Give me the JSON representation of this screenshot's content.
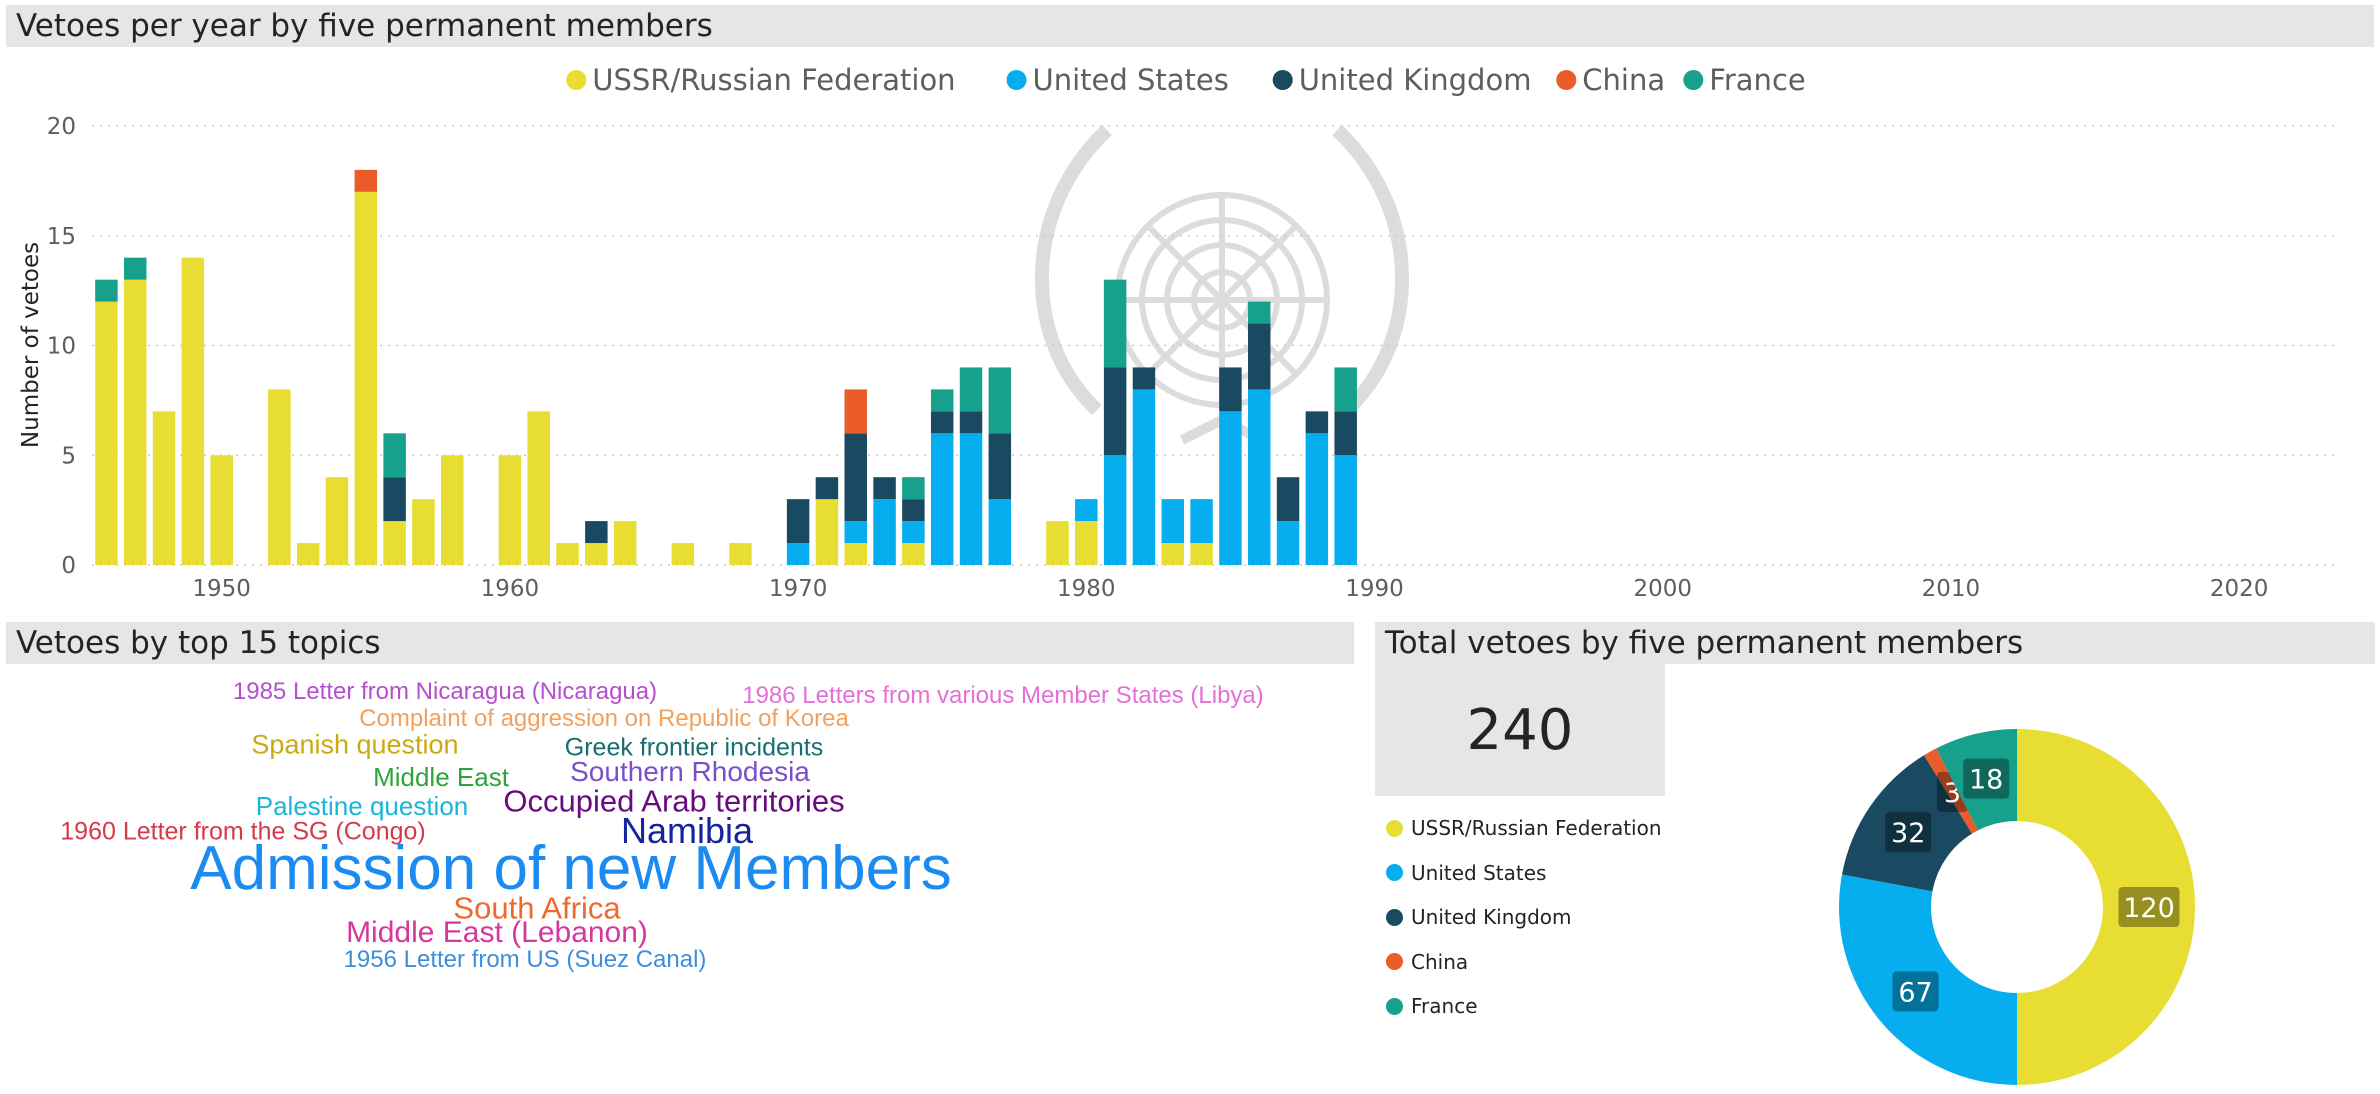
{
  "headers": {
    "bar_title": "Vetoes per year by five permanent members",
    "wordcloud_title": "Vetoes by top 15 topics",
    "donut_title": "Total vetoes by five permanent members"
  },
  "kpi": {
    "total": "240"
  },
  "colors": {
    "USSR/Russian Federation": "#e8dd32",
    "United States": "#07aeef",
    "United Kingdom": "#194a61",
    "China": "#ea5d2b",
    "France": "#17a08c"
  },
  "chart_data": [
    {
      "type": "bar",
      "stacked": true,
      "title": "Vetoes per year by five permanent members",
      "xlabel": "",
      "ylabel": "Number of vetoes",
      "xlim": [
        1945.5,
        2023.5
      ],
      "ylim": [
        0,
        20
      ],
      "x_ticks": [
        1950,
        1960,
        1970,
        1980,
        1990,
        2000,
        2010,
        2020
      ],
      "y_ticks": [
        0,
        5,
        10,
        15,
        20
      ],
      "grid": true,
      "legend_position": "top-center",
      "x": [
        1946,
        1947,
        1948,
        1949,
        1950,
        1952,
        1953,
        1954,
        1955,
        1956,
        1957,
        1958,
        1960,
        1961,
        1962,
        1963,
        1964,
        1966,
        1968,
        1970,
        1971,
        1972,
        1973,
        1974,
        1975,
        1976,
        1977,
        1979,
        1980,
        1981,
        1982,
        1983,
        1984,
        1985,
        1986,
        1987,
        1988,
        1989
      ],
      "series": [
        {
          "name": "USSR/Russian Federation",
          "values": [
            12,
            13,
            7,
            14,
            5,
            8,
            1,
            4,
            17,
            2,
            3,
            5,
            5,
            7,
            1,
            1,
            2,
            1,
            1,
            0,
            3,
            1,
            0,
            1,
            0,
            0,
            0,
            2,
            2,
            0,
            0,
            1,
            1,
            0,
            0,
            0,
            0,
            0
          ]
        },
        {
          "name": "United States",
          "values": [
            0,
            0,
            0,
            0,
            0,
            0,
            0,
            0,
            0,
            0,
            0,
            0,
            0,
            0,
            0,
            0,
            0,
            0,
            0,
            1,
            0,
            1,
            3,
            1,
            6,
            6,
            3,
            0,
            1,
            5,
            8,
            2,
            2,
            7,
            8,
            2,
            6,
            5
          ]
        },
        {
          "name": "United Kingdom",
          "values": [
            0,
            0,
            0,
            0,
            0,
            0,
            0,
            0,
            0,
            2,
            0,
            0,
            0,
            0,
            0,
            1,
            0,
            0,
            0,
            2,
            1,
            4,
            1,
            1,
            1,
            1,
            3,
            0,
            0,
            4,
            1,
            0,
            0,
            2,
            3,
            2,
            1,
            2
          ]
        },
        {
          "name": "China",
          "values": [
            0,
            0,
            0,
            0,
            0,
            0,
            0,
            0,
            1,
            0,
            0,
            0,
            0,
            0,
            0,
            0,
            0,
            0,
            0,
            0,
            0,
            2,
            0,
            0,
            0,
            0,
            0,
            0,
            0,
            0,
            0,
            0,
            0,
            0,
            0,
            0,
            0,
            0
          ]
        },
        {
          "name": "France",
          "values": [
            1,
            1,
            0,
            0,
            0,
            0,
            0,
            0,
            0,
            2,
            0,
            0,
            0,
            0,
            0,
            0,
            0,
            0,
            0,
            0,
            0,
            0,
            0,
            1,
            1,
            2,
            3,
            0,
            0,
            4,
            0,
            0,
            0,
            0,
            1,
            0,
            0,
            2
          ]
        }
      ]
    },
    {
      "type": "pie",
      "donut": true,
      "title": "Total vetoes by five permanent members",
      "legend_position": "left",
      "categories": [
        "USSR/Russian Federation",
        "United States",
        "United Kingdom",
        "China",
        "France"
      ],
      "values": [
        120,
        67,
        32,
        3,
        18
      ]
    }
  ],
  "wordcloud": [
    {
      "text": "1985 Letter from Nicaragua (Nicaragua)",
      "color": "#b44fcd",
      "size": 24
    },
    {
      "text": "1986 Letters from various Member States (Libya)",
      "color": "#e46fd8",
      "size": 24
    },
    {
      "text": "Complaint of aggression on Republic of Korea",
      "color": "#f2a05d",
      "size": 24
    },
    {
      "text": "Spanish question",
      "color": "#c9aa12",
      "size": 27
    },
    {
      "text": "Greek frontier incidents",
      "color": "#176e6e",
      "size": 25
    },
    {
      "text": "Middle East",
      "color": "#2ea43c",
      "size": 26
    },
    {
      "text": "Southern Rhodesia",
      "color": "#7a4fcb",
      "size": 28
    },
    {
      "text": "Palestine question",
      "color": "#1ab6d6",
      "size": 26
    },
    {
      "text": "Occupied Arab territories",
      "color": "#6a0a80",
      "size": 31
    },
    {
      "text": "1960 Letter from the SG (Congo)",
      "color": "#d63a47",
      "size": 25
    },
    {
      "text": "Namibia",
      "color": "#13249c",
      "size": 36
    },
    {
      "text": "Admission of new Members",
      "color": "#1b8bf2",
      "size": 62
    },
    {
      "text": "South Africa",
      "color": "#ee6a2b",
      "size": 31
    },
    {
      "text": "Middle East (Lebanon)",
      "color": "#d6379c",
      "size": 30
    },
    {
      "text": "1956 Letter from US (Suez Canal)",
      "color": "#3f8ede",
      "size": 24
    }
  ]
}
